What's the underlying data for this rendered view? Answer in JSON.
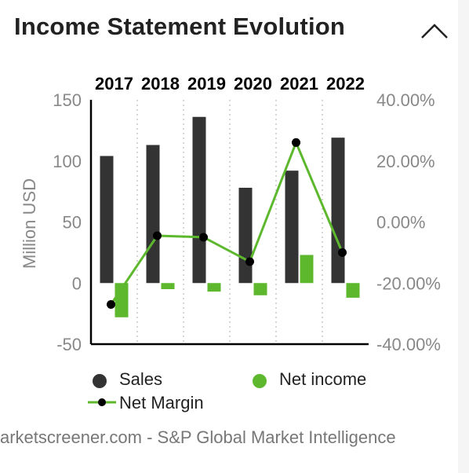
{
  "widget": {
    "title": "Income Statement Evolution",
    "collapse_icon": "chevron-up-icon",
    "source": "arketscreener.com - S&P Global Market Intelligence"
  },
  "colors": {
    "sales": "#333333",
    "net_income": "#5db82e",
    "net_margin_line": "#5db82e",
    "net_margin_marker": "#000000",
    "axis_text": "#888888",
    "year_text": "#000000",
    "grid": "#bbbbbb"
  },
  "legend": {
    "sales": "Sales",
    "net_income": "Net income",
    "net_margin": "Net Margin"
  },
  "chart_data": {
    "type": "bar",
    "categories": [
      "2017",
      "2018",
      "2019",
      "2020",
      "2021",
      "2022"
    ],
    "ylabel": "Million USD",
    "ylim": [
      -50,
      150
    ],
    "yticks": [
      "150",
      "100",
      "50",
      "0",
      "-50"
    ],
    "y2lim": [
      -40,
      40
    ],
    "y2ticks": [
      "40.00%",
      "20.00%",
      "0.00%",
      "-20.00%",
      "-40.00%"
    ],
    "grid": "vertical dotted",
    "legend_position": "bottom",
    "series": [
      {
        "name": "Sales",
        "type": "bar",
        "axis": "left",
        "values": [
          104,
          113,
          136,
          78,
          92,
          119
        ]
      },
      {
        "name": "Net income",
        "type": "bar",
        "axis": "left",
        "values": [
          -28,
          -5,
          -7,
          -10,
          23,
          -12
        ]
      },
      {
        "name": "Net Margin",
        "type": "line",
        "axis": "right",
        "values": [
          -27,
          -4.5,
          -5,
          -13,
          26,
          -10
        ]
      }
    ]
  }
}
